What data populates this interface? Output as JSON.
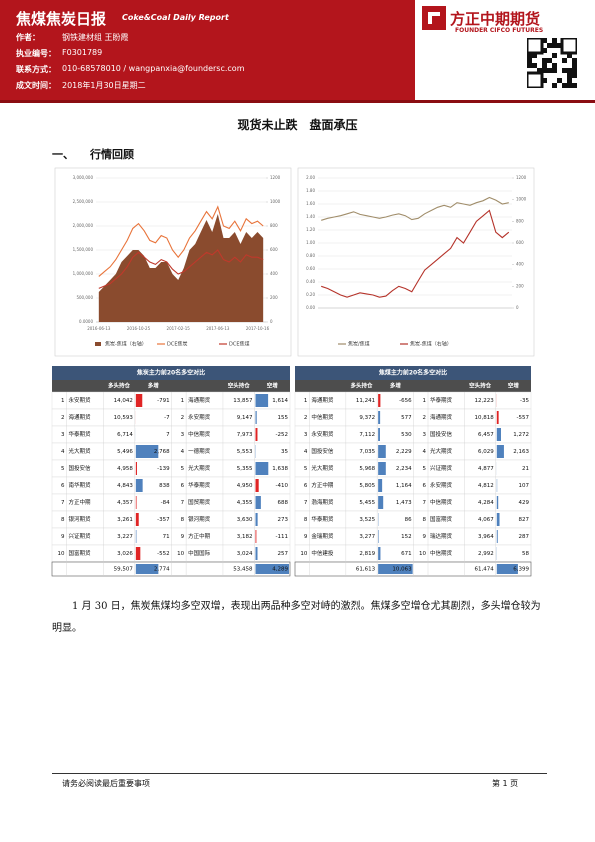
{
  "header": {
    "title": "焦煤焦炭日报",
    "subtitle": "Coke&Coal Daily Report",
    "logo": "方正中期期货",
    "logo_en": "FOUNDER CIFCO FUTURES",
    "meta": [
      {
        "label": "作者：",
        "value": "钢铁建材组 王盼霞"
      },
      {
        "label": "执业编号：",
        "value": "F0301789"
      },
      {
        "label": "联系方式：",
        "value": "010-68578010 / wangpanxia@foundersc.com"
      },
      {
        "label": "成文时间：",
        "value": "2018年1月30日星期二"
      }
    ]
  },
  "headline": "现货未止跌　盘面承压",
  "section": {
    "number": "一、",
    "title": "行情回顾"
  },
  "charts": [
    {
      "type": "line",
      "categories": [
        "2016-06-13",
        null,
        null,
        null,
        null,
        null,
        null,
        "2016-10-25",
        null,
        null,
        null,
        null,
        null,
        null,
        "2017-02-15",
        null,
        null,
        null,
        null,
        null,
        null,
        "2017-06-13",
        null,
        null,
        null,
        null,
        null,
        null,
        "2017-10-16",
        null
      ],
      "ylim": [
        0,
        3000000
      ],
      "yticks": [
        {
          "value": 0,
          "label": "0.0000"
        },
        {
          "value": 500000,
          "label": "500,000"
        },
        {
          "value": 1000000,
          "label": "1,000,000"
        },
        {
          "value": 1500000,
          "label": "1,500,000"
        },
        {
          "value": 2000000,
          "label": "2,000,000"
        },
        {
          "value": 2500000,
          "label": "2,500,000"
        },
        {
          "value": 3000000,
          "label": "3,000,000"
        }
      ],
      "y2lim": [
        0,
        1200
      ],
      "y2ticks": [
        0,
        200,
        400,
        600,
        800,
        1000,
        1200
      ],
      "grid": true,
      "legend": "bottom",
      "series": [
        {
          "name": "焦炭-焦煤（右轴）",
          "color": "#8a4b2e",
          "axis": "y2",
          "kind": "area",
          "values": [
            250,
            300,
            350,
            400,
            500,
            550,
            600,
            600,
            550,
            450,
            450,
            500,
            500,
            400,
            350,
            450,
            600,
            650,
            750,
            850,
            750,
            900,
            700,
            700,
            750,
            650,
            750,
            700,
            750,
            700
          ]
        },
        {
          "name": "DCE焦炭",
          "color": "#e8743b",
          "values": [
            950000,
            1050000,
            1150000,
            1300000,
            1500000,
            1700000,
            1950000,
            2050000,
            1900000,
            1700000,
            1650000,
            1800000,
            1750000,
            1500000,
            1350000,
            1500000,
            1750000,
            1900000,
            2100000,
            2300000,
            2150000,
            2400000,
            2000000,
            1950000,
            2100000,
            1900000,
            2150000,
            2050000,
            2100000,
            2000000
          ]
        },
        {
          "name": "DCE焦煤",
          "color": "#c0392b",
          "values": [
            700000,
            750000,
            800000,
            900000,
            1000000,
            1150000,
            1350000,
            1450000,
            1350000,
            1250000,
            1200000,
            1300000,
            1250000,
            1100000,
            1000000,
            1050000,
            1150000,
            1250000,
            1350000,
            1450000,
            1400000,
            1500000,
            1300000,
            1250000,
            1350000,
            1250000,
            1400000,
            1350000,
            1350000,
            1300000
          ]
        }
      ]
    },
    {
      "type": "line",
      "categories": [
        null,
        null,
        null,
        null,
        null,
        null,
        null,
        null,
        null,
        null,
        null,
        null,
        null,
        null,
        null,
        null,
        null,
        null,
        null,
        null,
        null,
        null,
        null,
        null,
        null,
        null,
        null,
        null,
        null,
        null
      ],
      "ylim": [
        0,
        2
      ],
      "yticks": [
        {
          "value": 0,
          "label": "0.00"
        },
        {
          "value": 0.2,
          "label": "0.20"
        },
        {
          "value": 0.4,
          "label": "0.40"
        },
        {
          "value": 0.6,
          "label": "0.60"
        },
        {
          "value": 0.8,
          "label": "0.80"
        },
        {
          "value": 1,
          "label": "1.00"
        },
        {
          "value": 1.2,
          "label": "1.20"
        },
        {
          "value": 1.4,
          "label": "1.40"
        },
        {
          "value": 1.6,
          "label": "1.60"
        },
        {
          "value": 1.8,
          "label": "1.80"
        },
        {
          "value": 2,
          "label": "2.00"
        }
      ],
      "y2lim": [
        0,
        1200
      ],
      "y2ticks": [
        0,
        200,
        400,
        600,
        800,
        1000,
        1200
      ],
      "grid": true,
      "legend": "bottom",
      "series": [
        {
          "name": "焦炭/焦煤",
          "color": "#a08d6a",
          "values": [
            1.35,
            1.38,
            1.4,
            1.42,
            1.45,
            1.48,
            1.44,
            1.42,
            1.4,
            1.38,
            1.4,
            1.43,
            1.45,
            1.42,
            1.36,
            1.38,
            1.45,
            1.5,
            1.55,
            1.58,
            1.55,
            1.62,
            1.6,
            1.58,
            1.62,
            1.65,
            1.7,
            1.66,
            1.6,
            1.62
          ]
        },
        {
          "name": "焦炭-焦煤（右轴）",
          "color": "#b5332a",
          "axis": "y2",
          "values": [
            200,
            180,
            150,
            120,
            100,
            120,
            140,
            130,
            120,
            100,
            110,
            160,
            200,
            180,
            150,
            250,
            350,
            400,
            450,
            500,
            550,
            650,
            600,
            700,
            800,
            850,
            900,
            700,
            650,
            700
          ]
        }
      ]
    }
  ],
  "tables": [
    {
      "title": "焦炭主力前20名多空对比",
      "headers": {
        "long_position": "多头持仓",
        "long_change": "多增",
        "short_position": "空头持仓",
        "short_change": "空增"
      },
      "long": [
        {
          "rank": 1,
          "name": "永安期货",
          "position": "14,042",
          "change": -791,
          "change_label": "-791"
        },
        {
          "rank": 2,
          "name": "海通期货",
          "position": "10,593",
          "change": -7,
          "change_label": "-7"
        },
        {
          "rank": 3,
          "name": "华泰期货",
          "position": "6,714",
          "change": 7,
          "change_label": "7"
        },
        {
          "rank": 4,
          "name": "光大期货",
          "position": "5,496",
          "change": 2768,
          "change_label": "2,768"
        },
        {
          "rank": 5,
          "name": "国投安信",
          "position": "4,958",
          "change": -139,
          "change_label": "-139"
        },
        {
          "rank": 6,
          "name": "南华期货",
          "position": "4,843",
          "change": 838,
          "change_label": "838"
        },
        {
          "rank": 7,
          "name": "方正中期",
          "position": "4,357",
          "change": -84,
          "change_label": "-84"
        },
        {
          "rank": 8,
          "name": "银河期货",
          "position": "3,261",
          "change": -357,
          "change_label": "-357"
        },
        {
          "rank": 9,
          "name": "兴证期货",
          "position": "3,227",
          "change": 71,
          "change_label": "71"
        },
        {
          "rank": 10,
          "name": "国富期货",
          "position": "3,026",
          "change": -552,
          "change_label": "-552"
        }
      ],
      "short": [
        {
          "rank": 1,
          "name": "海通期货",
          "position": "13,857",
          "change": 1614,
          "change_label": "1,614"
        },
        {
          "rank": 2,
          "name": "永安期货",
          "position": "9,147",
          "change": 155,
          "change_label": "155"
        },
        {
          "rank": 3,
          "name": "中信期货",
          "position": "7,973",
          "change": -252,
          "change_label": "-252"
        },
        {
          "rank": 4,
          "name": "一德期货",
          "position": "5,553",
          "change": 35,
          "change_label": "35"
        },
        {
          "rank": 5,
          "name": "光大期货",
          "position": "5,355",
          "change": 1638,
          "change_label": "1,638"
        },
        {
          "rank": 6,
          "name": "华泰期货",
          "position": "4,950",
          "change": -410,
          "change_label": "-410"
        },
        {
          "rank": 7,
          "name": "国贸期货",
          "position": "4,355",
          "change": 688,
          "change_label": "688"
        },
        {
          "rank": 8,
          "name": "银河期货",
          "position": "3,630",
          "change": 273,
          "change_label": "273"
        },
        {
          "rank": 9,
          "name": "方正中期",
          "position": "3,182",
          "change": -111,
          "change_label": "-111"
        },
        {
          "rank": 10,
          "name": "中国国际",
          "position": "3,024",
          "change": 257,
          "change_label": "257"
        }
      ],
      "total": {
        "long": {
          "position": "59,507",
          "change": 2774,
          "change_label": "2,774"
        },
        "short": {
          "position": "53,458",
          "change": 4289,
          "change_label": "4,289"
        }
      }
    },
    {
      "title": "焦煤主力前20名多空对比",
      "headers": {
        "long_position": "多头持仓",
        "long_change": "多增",
        "short_position": "空头持仓",
        "short_change": "空增"
      },
      "long": [
        {
          "rank": 1,
          "name": "海通期货",
          "position": "11,241",
          "change": -656,
          "change_label": "-656"
        },
        {
          "rank": 2,
          "name": "中信期货",
          "position": "9,372",
          "change": 577,
          "change_label": "577"
        },
        {
          "rank": 3,
          "name": "永安期货",
          "position": "7,112",
          "change": 530,
          "change_label": "530"
        },
        {
          "rank": 4,
          "name": "国投安信",
          "position": "7,035",
          "change": 2229,
          "change_label": "2,229"
        },
        {
          "rank": 5,
          "name": "光大期货",
          "position": "5,968",
          "change": 2234,
          "change_label": "2,234"
        },
        {
          "rank": 6,
          "name": "方正中期",
          "position": "5,805",
          "change": 1164,
          "change_label": "1,164"
        },
        {
          "rank": 7,
          "name": "渤海期货",
          "position": "5,455",
          "change": 1473,
          "change_label": "1,473"
        },
        {
          "rank": 8,
          "name": "华泰期货",
          "position": "3,525",
          "change": 86,
          "change_label": "86"
        },
        {
          "rank": 9,
          "name": "金瑞期货",
          "position": "3,277",
          "change": 152,
          "change_label": "152"
        },
        {
          "rank": 10,
          "name": "中信建投",
          "position": "2,819",
          "change": 671,
          "change_label": "671"
        }
      ],
      "short": [
        {
          "rank": 1,
          "name": "华泰期货",
          "position": "12,223",
          "change": -35,
          "change_label": "-35"
        },
        {
          "rank": 2,
          "name": "海通期货",
          "position": "10,818",
          "change": -557,
          "change_label": "-557"
        },
        {
          "rank": 3,
          "name": "国投安信",
          "position": "6,457",
          "change": 1272,
          "change_label": "1,272"
        },
        {
          "rank": 4,
          "name": "光大期货",
          "position": "6,029",
          "change": 2163,
          "change_label": "2,163"
        },
        {
          "rank": 5,
          "name": "兴证期货",
          "position": "4,877",
          "change": 21,
          "change_label": "21"
        },
        {
          "rank": 6,
          "name": "永安期货",
          "position": "4,812",
          "change": 107,
          "change_label": "107"
        },
        {
          "rank": 7,
          "name": "中信期货",
          "position": "4,284",
          "change": 429,
          "change_label": "429"
        },
        {
          "rank": 8,
          "name": "国富期货",
          "position": "4,067",
          "change": 827,
          "change_label": "827"
        },
        {
          "rank": 9,
          "name": "瑞达期货",
          "position": "3,964",
          "change": 287,
          "change_label": "287"
        },
        {
          "rank": 10,
          "name": "中信期货",
          "position": "2,992",
          "change": 58,
          "change_label": "58"
        }
      ],
      "total": {
        "long": {
          "position": "61,613",
          "change": 10063,
          "change_label": "10,063"
        },
        "short": {
          "position": "61,474",
          "change": 6399,
          "change_label": "6,399"
        }
      }
    }
  ],
  "paragraph": "1 月 30 日，焦炭焦煤均多空双增，表现出两品种多空对峙的激烈。焦煤多空增仓尤其剧烈，多头增仓较为明显。",
  "footer": {
    "note": "请务必阅读最后重要事项",
    "page": "第 1 页"
  }
}
